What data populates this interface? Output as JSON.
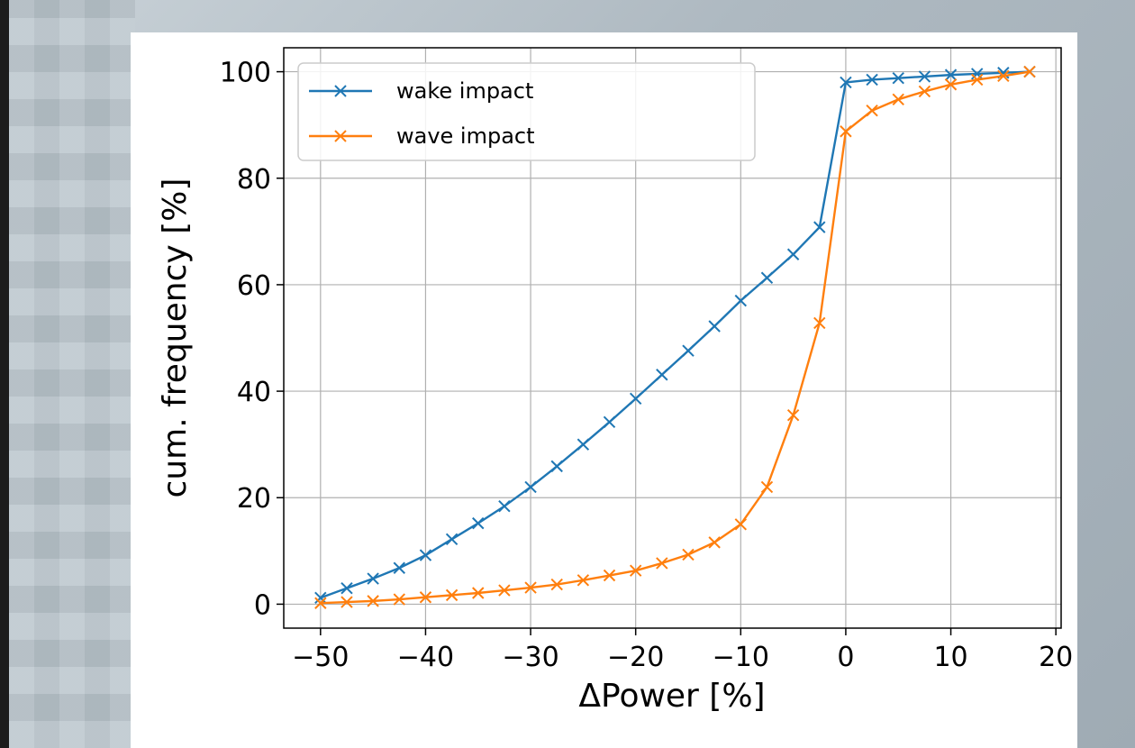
{
  "chart_data": {
    "type": "line",
    "xlabel": "ΔPower [%]",
    "ylabel": "cum. frequency [%]",
    "xlim": [
      -53.5,
      20.5
    ],
    "ylim": [
      -4.5,
      104.5
    ],
    "xticks": [
      -50,
      -40,
      -30,
      -20,
      -10,
      0,
      10,
      20
    ],
    "xtick_labels": [
      "−50",
      "−40",
      "−30",
      "−20",
      "−10",
      "0",
      "10",
      "20"
    ],
    "yticks": [
      0,
      20,
      40,
      60,
      80,
      100
    ],
    "ytick_labels": [
      "0",
      "20",
      "40",
      "60",
      "80",
      "100"
    ],
    "grid": true,
    "legend_position": "top-left",
    "marker": "x",
    "series": [
      {
        "name": "wake impact",
        "color": "#1f77b4",
        "x": [
          -50,
          -47.5,
          -45,
          -42.5,
          -40,
          -37.5,
          -35,
          -32.5,
          -30,
          -27.5,
          -25,
          -22.5,
          -20,
          -17.5,
          -15,
          -12.5,
          -10,
          -7.5,
          -5,
          -2.5,
          0,
          2.5,
          5,
          7.5,
          10,
          12.5,
          15,
          17.5
        ],
        "y": [
          1.2,
          3,
          4.8,
          6.8,
          9.2,
          12.2,
          15.2,
          18.4,
          22,
          25.9,
          30,
          34.2,
          38.6,
          43.1,
          47.6,
          52.2,
          57,
          61.3,
          65.7,
          70.8,
          98,
          98.5,
          98.8,
          99.1,
          99.4,
          99.6,
          99.8,
          100
        ]
      },
      {
        "name": "wave impact",
        "color": "#ff7f0e",
        "x": [
          -50,
          -47.5,
          -45,
          -42.5,
          -40,
          -37.5,
          -35,
          -32.5,
          -30,
          -27.5,
          -25,
          -22.5,
          -20,
          -17.5,
          -15,
          -12.5,
          -10,
          -7.5,
          -5,
          -2.5,
          0,
          2.5,
          5,
          7.5,
          10,
          12.5,
          15,
          17.5
        ],
        "y": [
          0.2,
          0.4,
          0.6,
          0.9,
          1.3,
          1.7,
          2.1,
          2.6,
          3.1,
          3.7,
          4.5,
          5.4,
          6.3,
          7.7,
          9.3,
          11.6,
          15,
          22,
          35.5,
          52.8,
          88.8,
          92.7,
          94.8,
          96.3,
          97.6,
          98.5,
          99.2,
          100
        ]
      }
    ]
  }
}
